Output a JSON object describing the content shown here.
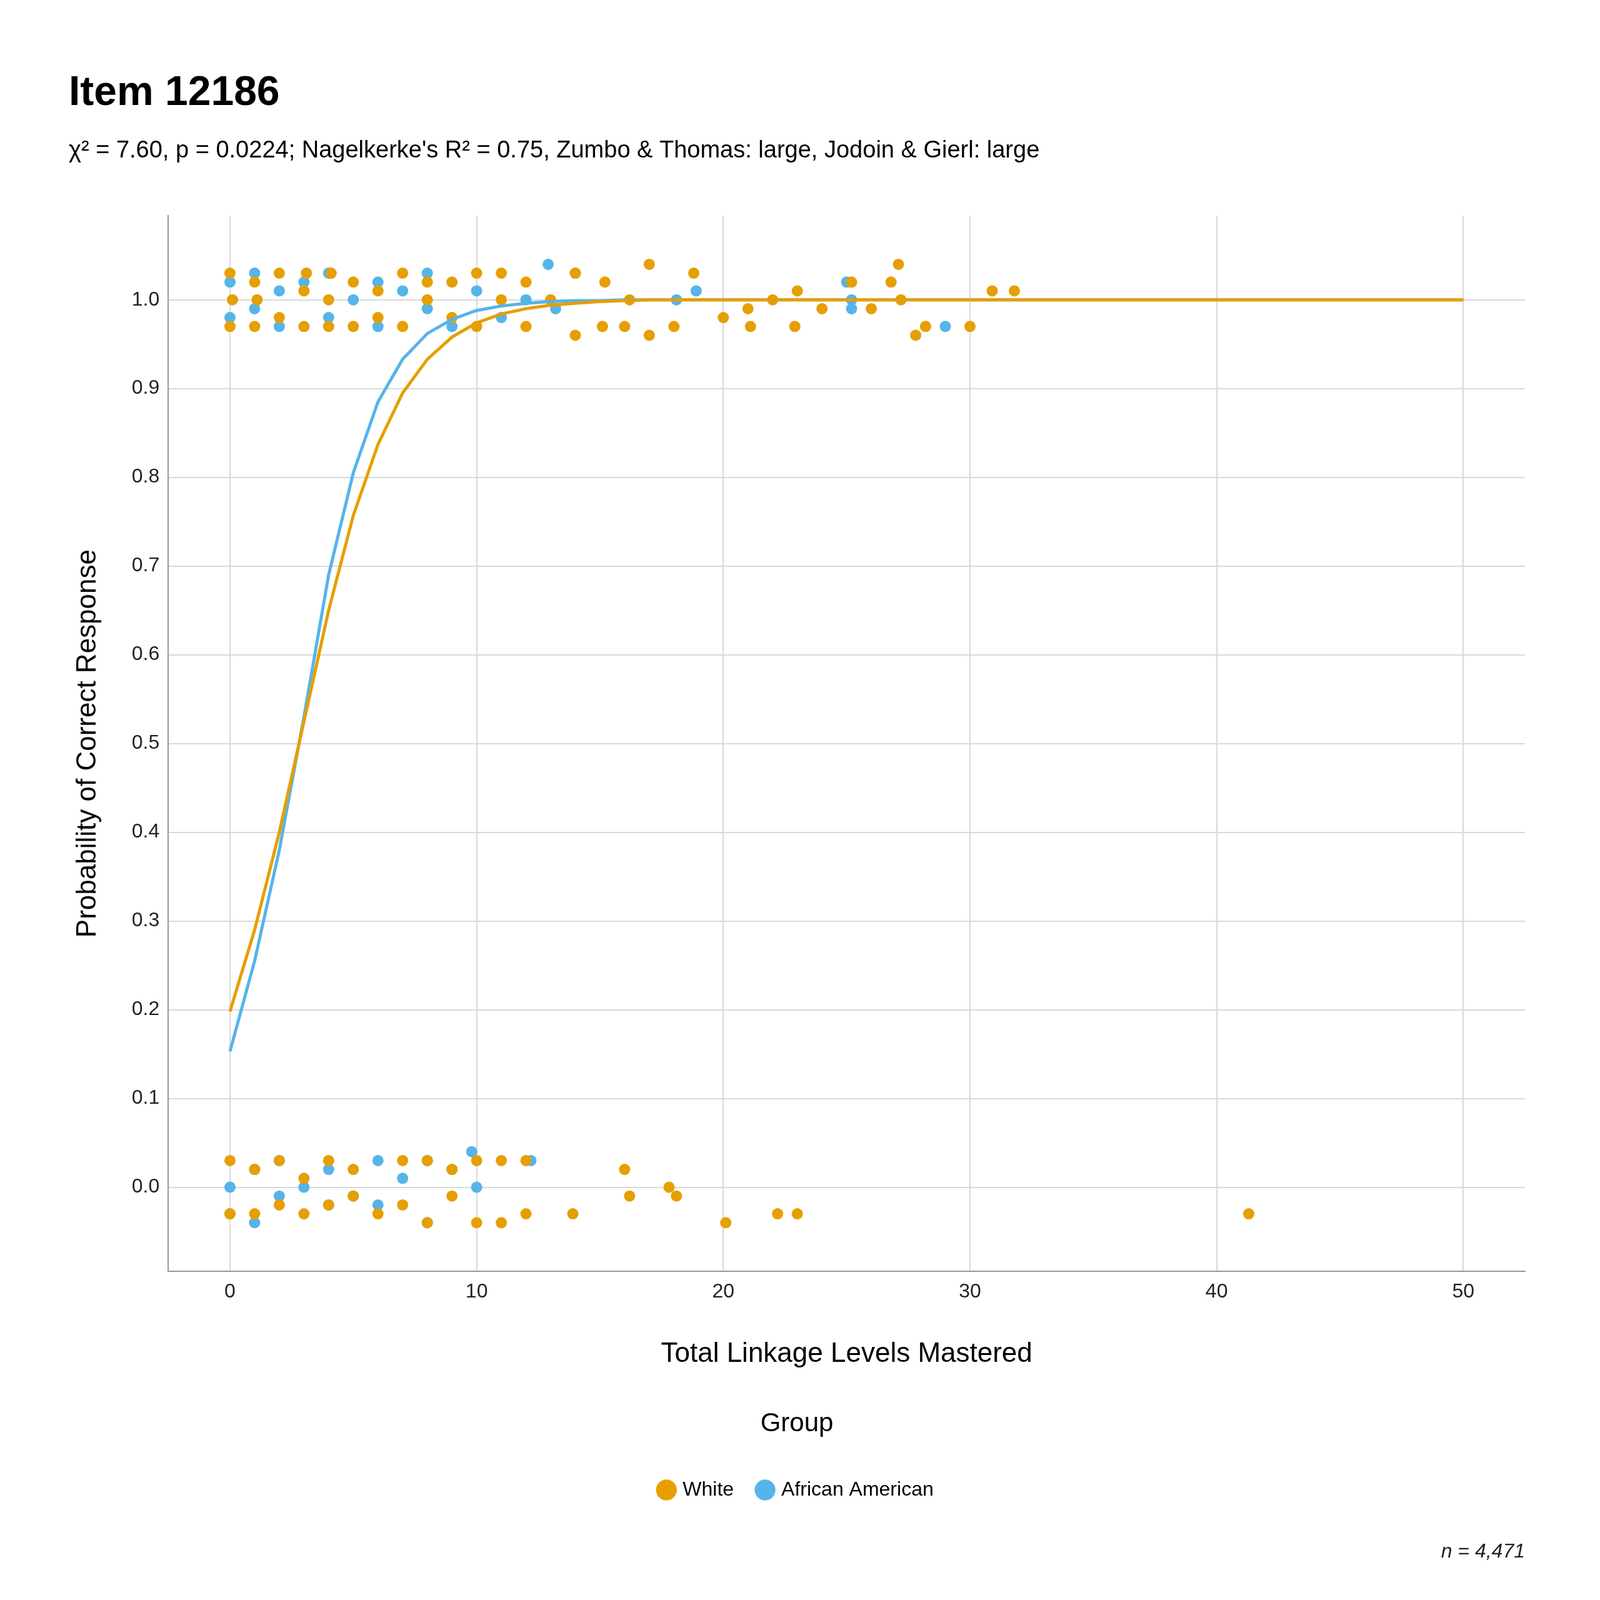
{
  "chart_data": {
    "type": "line",
    "title": "Item 12186",
    "subtitle": "χ² = 7.60, p = 0.0224; Nagelkerke's R² = 0.75, Zumbo & Thomas: large, Jodoin & Gierl: large",
    "x_label": "Total Linkage Levels Mastered",
    "y_label": "Probability of Correct Response",
    "legend_title": "Group",
    "legend": "bottom",
    "note": "n = 4,471",
    "grid": true,
    "xlim": [
      -2.5,
      52.5
    ],
    "xticks": [
      0,
      10,
      20,
      30,
      40,
      50
    ],
    "ylim": [
      -0.095,
      1.095
    ],
    "yticks": [
      {
        "value": 0,
        "label": "0.0"
      },
      0.1,
      0.2,
      0.3,
      0.4,
      0.5,
      0.6,
      0.7,
      0.8,
      0.9,
      {
        "value": 1,
        "label": "1.0"
      }
    ],
    "series": [
      {
        "name": "White",
        "color": "#E69F00",
        "marker": "circle",
        "x": [
          0,
          1,
          2,
          3,
          4,
          5,
          6,
          7,
          8,
          9,
          10,
          11,
          12,
          13,
          14,
          15,
          16,
          17,
          18,
          19,
          20,
          25,
          30,
          35,
          40,
          45,
          50
        ],
        "values": [
          0.198,
          0.29,
          0.4,
          0.525,
          0.65,
          0.757,
          0.837,
          0.895,
          0.933,
          0.958,
          0.974,
          0.984,
          0.99,
          0.994,
          0.996,
          0.998,
          0.999,
          1.0,
          1.0,
          1.0,
          1.0,
          1.0,
          1.0,
          1.0,
          1.0,
          1.0,
          1.0
        ],
        "points": [
          [
            0,
            1.03
          ],
          [
            0,
            0.97
          ],
          [
            0.1,
            1.0
          ],
          [
            1,
            1.02
          ],
          [
            1,
            0.97
          ],
          [
            1.1,
            1.0
          ],
          [
            2,
            1.03
          ],
          [
            2,
            0.98
          ],
          [
            3,
            1.01
          ],
          [
            3,
            0.97
          ],
          [
            3.1,
            1.03
          ],
          [
            4,
            1.0
          ],
          [
            4,
            0.97
          ],
          [
            4.1,
            1.03
          ],
          [
            5,
            1.02
          ],
          [
            5,
            0.97
          ],
          [
            6,
            1.01
          ],
          [
            6,
            0.98
          ],
          [
            7,
            1.03
          ],
          [
            7,
            0.97
          ],
          [
            8,
            1.0
          ],
          [
            8,
            1.02
          ],
          [
            9,
            0.98
          ],
          [
            9,
            1.02
          ],
          [
            10,
            1.03
          ],
          [
            10,
            0.97
          ],
          [
            11,
            1.0
          ],
          [
            11,
            1.03
          ],
          [
            12,
            1.02
          ],
          [
            12,
            0.97
          ],
          [
            13,
            1.0
          ],
          [
            14,
            0.96
          ],
          [
            14,
            1.03
          ],
          [
            15.2,
            1.02
          ],
          [
            15.1,
            0.97
          ],
          [
            16.2,
            1.0
          ],
          [
            16,
            0.97
          ],
          [
            17,
            1.04
          ],
          [
            17,
            0.96
          ],
          [
            18,
            0.97
          ],
          [
            18.8,
            1.03
          ],
          [
            20,
            0.98
          ],
          [
            21,
            0.99
          ],
          [
            21.1,
            0.97
          ],
          [
            22,
            1.0
          ],
          [
            22.9,
            0.97
          ],
          [
            23,
            1.01
          ],
          [
            24,
            0.99
          ],
          [
            25.2,
            1.02
          ],
          [
            26,
            0.99
          ],
          [
            26.8,
            1.02
          ],
          [
            27.1,
            1.04
          ],
          [
            27.2,
            1.0
          ],
          [
            27.8,
            0.96
          ],
          [
            28.2,
            0.97
          ],
          [
            30,
            0.97
          ],
          [
            30.9,
            1.01
          ],
          [
            31.8,
            1.01
          ],
          [
            0,
            0.03
          ],
          [
            0,
            -0.03
          ],
          [
            1,
            0.02
          ],
          [
            1,
            -0.03
          ],
          [
            2,
            0.03
          ],
          [
            2,
            -0.02
          ],
          [
            3,
            0.01
          ],
          [
            3,
            -0.03
          ],
          [
            4,
            0.03
          ],
          [
            4,
            -0.02
          ],
          [
            5,
            0.02
          ],
          [
            5,
            -0.01
          ],
          [
            6,
            -0.03
          ],
          [
            7,
            0.03
          ],
          [
            7,
            -0.02
          ],
          [
            8,
            0.03
          ],
          [
            8,
            -0.04
          ],
          [
            9,
            0.02
          ],
          [
            9,
            -0.01
          ],
          [
            10,
            0.03
          ],
          [
            10,
            -0.04
          ],
          [
            11,
            0.03
          ],
          [
            11,
            -0.04
          ],
          [
            12,
            0.03
          ],
          [
            12,
            -0.03
          ],
          [
            13.9,
            -0.03
          ],
          [
            16,
            0.02
          ],
          [
            16.2,
            -0.01
          ],
          [
            17.8,
            0.0
          ],
          [
            18.1,
            -0.01
          ],
          [
            20.1,
            -0.04
          ],
          [
            22.2,
            -0.03
          ],
          [
            23,
            -0.03
          ],
          [
            41.3,
            -0.03
          ]
        ]
      },
      {
        "name": "African American",
        "color": "#56B4E9",
        "marker": "circle",
        "x": [
          0,
          1,
          2,
          3,
          4,
          5,
          6,
          7,
          8,
          9,
          10,
          11,
          12,
          13,
          14,
          15,
          16,
          17,
          18,
          19,
          20,
          25,
          30,
          35,
          40,
          45,
          50
        ],
        "values": [
          0.153,
          0.255,
          0.38,
          0.53,
          0.69,
          0.805,
          0.885,
          0.933,
          0.962,
          0.978,
          0.988,
          0.993,
          0.996,
          0.998,
          0.999,
          0.999,
          1.0,
          1.0,
          1.0,
          1.0,
          1.0,
          1.0,
          1.0,
          1.0,
          1.0,
          1.0,
          1.0
        ],
        "points": [
          [
            0,
            1.02
          ],
          [
            0,
            0.98
          ],
          [
            1,
            1.03
          ],
          [
            1,
            0.99
          ],
          [
            2,
            1.01
          ],
          [
            2,
            0.97
          ],
          [
            3,
            1.02
          ],
          [
            4,
            0.98
          ],
          [
            4,
            1.03
          ],
          [
            5,
            1.0
          ],
          [
            6,
            1.02
          ],
          [
            6,
            0.97
          ],
          [
            7,
            1.01
          ],
          [
            8,
            0.99
          ],
          [
            8,
            1.03
          ],
          [
            9,
            0.97
          ],
          [
            10,
            1.01
          ],
          [
            11,
            0.98
          ],
          [
            12,
            1.0
          ],
          [
            12.9,
            1.04
          ],
          [
            13.2,
            0.99
          ],
          [
            14,
            1.03
          ],
          [
            18.1,
            1.0
          ],
          [
            18.9,
            1.01
          ],
          [
            25,
            1.02
          ],
          [
            25.2,
            0.99
          ],
          [
            25.2,
            1.0
          ],
          [
            29,
            0.97
          ],
          [
            0,
            0.0
          ],
          [
            0,
            -0.03
          ],
          [
            1,
            0.02
          ],
          [
            1,
            -0.04
          ],
          [
            2,
            0.03
          ],
          [
            2,
            -0.01
          ],
          [
            3,
            0.0
          ],
          [
            4,
            0.02
          ],
          [
            4,
            -0.02
          ],
          [
            5,
            -0.01
          ],
          [
            6,
            0.03
          ],
          [
            6,
            -0.02
          ],
          [
            7,
            0.01
          ],
          [
            8,
            -0.04
          ],
          [
            8,
            0.03
          ],
          [
            9,
            0.02
          ],
          [
            9.8,
            0.04
          ],
          [
            10,
            0.0
          ],
          [
            12.2,
            0.03
          ]
        ]
      }
    ]
  }
}
